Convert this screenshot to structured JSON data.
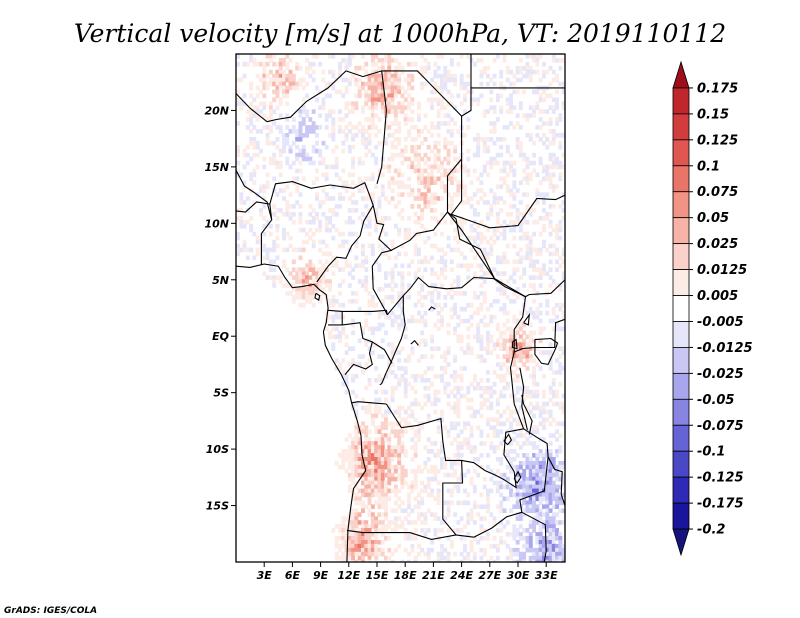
{
  "chart_data": {
    "type": "heatmap",
    "title": "Vertical velocity [m/s] at 1000hPa, VT: 2019110112",
    "x_ticks": [
      "3E",
      "6E",
      "9E",
      "12E",
      "15E",
      "18E",
      "21E",
      "24E",
      "27E",
      "30E",
      "33E"
    ],
    "y_ticks": [
      "20N",
      "15N",
      "10N",
      "5N",
      "EQ",
      "5S",
      "10S",
      "15S"
    ],
    "xlim": [
      0,
      35
    ],
    "ylim": [
      -20,
      25
    ],
    "colorbar": {
      "levels": [
        "0.175",
        "0.15",
        "0.125",
        "0.1",
        "0.075",
        "0.05",
        "0.025",
        "0.0125",
        "0.005",
        "-0.005",
        "-0.0125",
        "-0.025",
        "-0.05",
        "-0.075",
        "-0.1",
        "-0.125",
        "-0.175",
        "-0.2"
      ],
      "colors": [
        "#a00d1a",
        "#c0272d",
        "#d23c3c",
        "#e05650",
        "#ea7468",
        "#f29385",
        "#f7b3a7",
        "#fbd2c9",
        "#fdebe6",
        "#ffffff",
        "#e6e6fa",
        "#c9c8f4",
        "#a8a6ec",
        "#8784e2",
        "#6663d6",
        "#4b48c8",
        "#2e2ab6",
        "#1a159c",
        "#16127e"
      ]
    },
    "credit": "GrADS: IGES/COLA"
  }
}
